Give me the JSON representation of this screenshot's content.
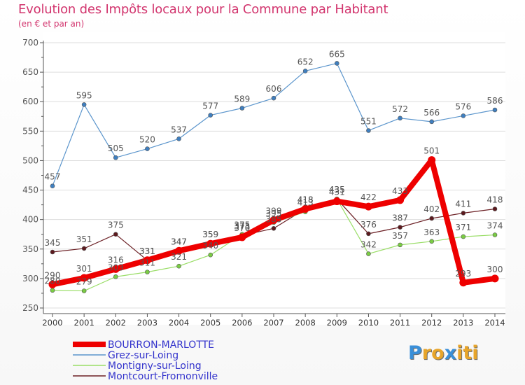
{
  "title": "Evolution des Impôts locaux pour la Commune par Habitant",
  "subtitle": "(en € et par an)",
  "logo": {
    "letters": [
      "P",
      "r",
      "o",
      "x",
      "i",
      "t",
      "i"
    ],
    "colors": [
      "#3a8fd8",
      "#e8a52a",
      "#e8a52a",
      "#3a8fd8",
      "#e8a52a",
      "#e8a52a",
      "#e8a52a"
    ]
  },
  "chart_data": {
    "type": "line",
    "title": "Evolution des Impôts locaux pour la Commune par Habitant",
    "subtitle": "(en € et par an)",
    "xlabel": "",
    "ylabel": "",
    "ylim": [
      250,
      700
    ],
    "yticks": [
      "250",
      "300",
      "350",
      "400",
      "450",
      "500",
      "550",
      "600",
      "650",
      "700"
    ],
    "yticks_values": [
      250,
      300,
      350,
      400,
      450,
      500,
      550,
      600,
      650,
      700
    ],
    "categories": [
      "2000",
      "2001",
      "2002",
      "2003",
      "2004",
      "2005",
      "2006",
      "2007",
      "2008",
      "2009",
      "2010",
      "2011",
      "2012",
      "2013",
      "2014"
    ],
    "grid": true,
    "legend_position": "bottom-left",
    "series": [
      {
        "name": "Grez-sur-Loing",
        "color": "#5b95cc",
        "marker": "#3f7fc0",
        "width": 1.2,
        "values": [
          457,
          595,
          505,
          520,
          537,
          577,
          589,
          606,
          652,
          665,
          551,
          572,
          566,
          576,
          586
        ],
        "labels": [
          "457",
          "595",
          "505",
          "520",
          "537",
          "577",
          "589",
          "606",
          "652",
          "665",
          "551",
          "572",
          "566",
          "576",
          "586"
        ]
      },
      {
        "name": "Montcourt-Fromonville",
        "color": "#6b1f24",
        "marker": "#5c1a1e",
        "width": 1.2,
        "values": [
          345,
          351,
          375,
          331,
          347,
          359,
          373,
          385,
          418,
          435,
          376,
          387,
          402,
          411,
          418
        ],
        "labels": [
          "345",
          "351",
          "375",
          "331",
          "347",
          "359",
          "373",
          "385",
          "418",
          "435",
          "376",
          "387",
          "402",
          "411",
          "418"
        ]
      },
      {
        "name": "Montigny-sur-Loing",
        "color": "#99dd66",
        "marker": "#7acc44",
        "width": 1.2,
        "values": [
          280,
          279,
          303,
          311,
          321,
          340,
          375,
          395,
          413,
          435,
          342,
          357,
          363,
          371,
          374
        ],
        "labels": [
          "280",
          "279",
          "303",
          "311",
          "321",
          "340",
          "375",
          "395",
          "413",
          "435",
          "342",
          "357",
          "363",
          "371",
          "374"
        ]
      },
      {
        "name": "BOURRON-MARLOTTE",
        "color": "#ee0000",
        "marker": "#ee0000",
        "width": 8,
        "values": [
          290,
          301,
          316,
          331,
          347,
          359,
          370,
          399,
          418,
          431,
          422,
          433,
          501,
          293,
          300
        ],
        "labels": [
          "290",
          "301",
          "316",
          "331",
          "347",
          "359",
          "370",
          "399",
          "418",
          "431",
          "422",
          "433",
          "501",
          "293",
          "300"
        ]
      }
    ],
    "legend": [
      {
        "name": "BOURRON-MARLOTTE",
        "color": "#ee0000",
        "thick": true
      },
      {
        "name": "Grez-sur-Loing",
        "color": "#5b95cc",
        "thick": false
      },
      {
        "name": "Montigny-sur-Loing",
        "color": "#99dd66",
        "thick": false
      },
      {
        "name": "Montcourt-Fromonville",
        "color": "#6b1f24",
        "thick": false
      }
    ],
    "axis_color": "#555555",
    "label_color": "#555555",
    "legend_text_color": "#3333cc"
  }
}
